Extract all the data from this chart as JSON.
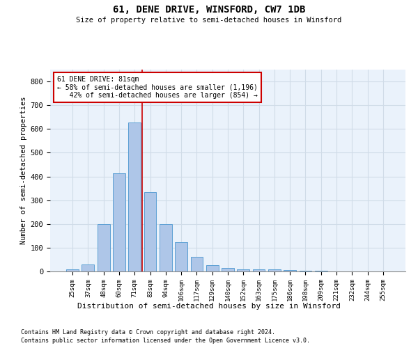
{
  "title": "61, DENE DRIVE, WINSFORD, CW7 1DB",
  "subtitle": "Size of property relative to semi-detached houses in Winsford",
  "xlabel": "Distribution of semi-detached houses by size in Winsford",
  "ylabel": "Number of semi-detached properties",
  "categories": [
    "25sqm",
    "37sqm",
    "48sqm",
    "60sqm",
    "71sqm",
    "83sqm",
    "94sqm",
    "106sqm",
    "117sqm",
    "129sqm",
    "140sqm",
    "152sqm",
    "163sqm",
    "175sqm",
    "186sqm",
    "198sqm",
    "209sqm",
    "221sqm",
    "232sqm",
    "244sqm",
    "255sqm"
  ],
  "values": [
    8,
    28,
    200,
    413,
    627,
    333,
    200,
    123,
    63,
    27,
    15,
    10,
    10,
    9,
    5,
    4,
    2,
    1,
    1,
    1,
    0
  ],
  "bar_color": "#aec6e8",
  "bar_edge_color": "#5a9fd4",
  "vline_x": 4.5,
  "annotation_text": "61 DENE DRIVE: 81sqm\n← 58% of semi-detached houses are smaller (1,196)\n   42% of semi-detached houses are larger (854) →",
  "annotation_box_color": "#ffffff",
  "annotation_box_edge_color": "#cc0000",
  "vline_color": "#cc0000",
  "grid_color": "#d0dce8",
  "background_color": "#eaf2fb",
  "footer_line1": "Contains HM Land Registry data © Crown copyright and database right 2024.",
  "footer_line2": "Contains public sector information licensed under the Open Government Licence v3.0.",
  "ylim": [
    0,
    850
  ],
  "yticks": [
    0,
    100,
    200,
    300,
    400,
    500,
    600,
    700,
    800
  ]
}
